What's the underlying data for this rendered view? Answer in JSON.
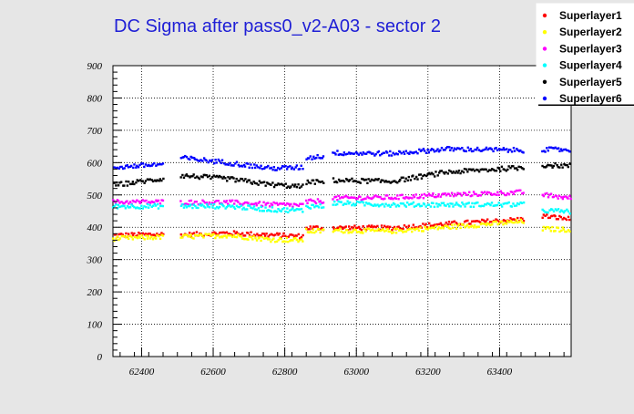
{
  "chart_data": {
    "type": "scatter",
    "title": "DC Sigma after pass0_v2-A03 - sector 2",
    "xlabel": "",
    "ylabel": "",
    "xlim": [
      62320,
      63600
    ],
    "ylim": [
      0,
      900
    ],
    "xticks": [
      62400,
      62600,
      62800,
      63000,
      63200,
      63400
    ],
    "yticks": [
      0,
      100,
      200,
      300,
      400,
      500,
      600,
      700,
      800,
      900
    ],
    "grid": true,
    "legend_position": "top-right",
    "segments": [
      [
        62320,
        62460
      ],
      [
        62510,
        62850
      ],
      [
        62860,
        62910
      ],
      [
        62935,
        63470
      ],
      [
        63520,
        63600
      ]
    ],
    "series": [
      {
        "name": "Superlayer1",
        "color": "#ff0000",
        "values": [
          [
            62320,
            375
          ],
          [
            62460,
            378
          ],
          [
            62510,
            376
          ],
          [
            62640,
            382
          ],
          [
            62760,
            376
          ],
          [
            62850,
            372
          ],
          [
            62860,
            398
          ],
          [
            62910,
            398
          ],
          [
            62935,
            398
          ],
          [
            63100,
            398
          ],
          [
            63250,
            410
          ],
          [
            63470,
            425
          ],
          [
            63520,
            435
          ],
          [
            63600,
            425
          ]
        ]
      },
      {
        "name": "Superlayer2",
        "color": "#ffff00",
        "values": [
          [
            62320,
            365
          ],
          [
            62460,
            370
          ],
          [
            62510,
            370
          ],
          [
            62640,
            375
          ],
          [
            62760,
            362
          ],
          [
            62850,
            360
          ],
          [
            62860,
            388
          ],
          [
            62910,
            388
          ],
          [
            62935,
            390
          ],
          [
            63100,
            388
          ],
          [
            63250,
            400
          ],
          [
            63470,
            418
          ],
          [
            63520,
            395
          ],
          [
            63600,
            392
          ]
        ]
      },
      {
        "name": "Superlayer3",
        "color": "#ff00ff",
        "values": [
          [
            62320,
            478
          ],
          [
            62460,
            478
          ],
          [
            62510,
            477
          ],
          [
            62640,
            477
          ],
          [
            62760,
            470
          ],
          [
            62850,
            468
          ],
          [
            62860,
            478
          ],
          [
            62910,
            482
          ],
          [
            62935,
            490
          ],
          [
            63100,
            492
          ],
          [
            63250,
            500
          ],
          [
            63470,
            508
          ],
          [
            63520,
            500
          ],
          [
            63600,
            490
          ]
        ]
      },
      {
        "name": "Superlayer4",
        "color": "#00ffff",
        "values": [
          [
            62320,
            465
          ],
          [
            62460,
            465
          ],
          [
            62510,
            465
          ],
          [
            62640,
            465
          ],
          [
            62760,
            455
          ],
          [
            62850,
            452
          ],
          [
            62860,
            465
          ],
          [
            62910,
            465
          ],
          [
            62935,
            475
          ],
          [
            63100,
            470
          ],
          [
            63250,
            470
          ],
          [
            63470,
            470
          ],
          [
            63520,
            452
          ],
          [
            63600,
            448
          ]
        ]
      },
      {
        "name": "Superlayer5",
        "color": "#000000",
        "values": [
          [
            62320,
            530
          ],
          [
            62460,
            550
          ],
          [
            62510,
            560
          ],
          [
            62640,
            550
          ],
          [
            62760,
            532
          ],
          [
            62850,
            525
          ],
          [
            62860,
            540
          ],
          [
            62910,
            540
          ],
          [
            62935,
            545
          ],
          [
            63100,
            542
          ],
          [
            63250,
            570
          ],
          [
            63470,
            585
          ],
          [
            63520,
            592
          ],
          [
            63600,
            590
          ]
        ]
      },
      {
        "name": "Superlayer6",
        "color": "#0000ff",
        "values": [
          [
            62320,
            585
          ],
          [
            62460,
            595
          ],
          [
            62510,
            615
          ],
          [
            62640,
            600
          ],
          [
            62760,
            582
          ],
          [
            62850,
            585
          ],
          [
            62860,
            615
          ],
          [
            62910,
            620
          ],
          [
            62935,
            630
          ],
          [
            63100,
            628
          ],
          [
            63250,
            642
          ],
          [
            63470,
            638
          ],
          [
            63520,
            640
          ],
          [
            63600,
            640
          ]
        ]
      }
    ]
  }
}
